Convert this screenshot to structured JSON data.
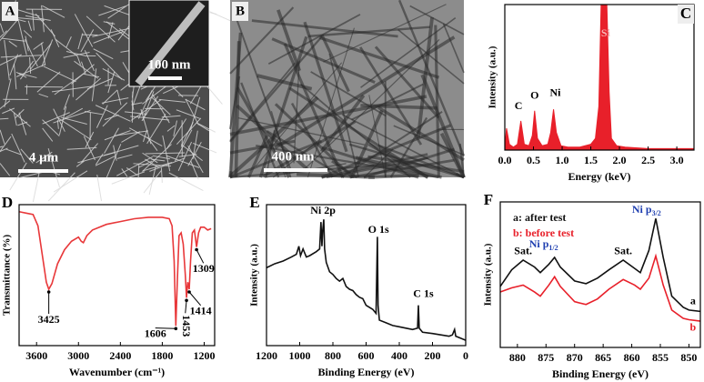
{
  "images": [
    {
      "panel_label": "A",
      "scale_bar": "4 μm",
      "inset_scale_bar": "100 nm"
    },
    {
      "panel_label": "B",
      "scale_bar": "400 nm"
    }
  ],
  "chart_data": [
    {
      "type": "area",
      "panel_label": "C",
      "x_label": "Energy (keV)",
      "y_label": "Intensity (a.u.)",
      "xlim": [
        0,
        3.3
      ],
      "ylim": [
        0,
        100
      ],
      "xticks": [
        {
          "value": 0,
          "label": "0.0"
        },
        0.5,
        {
          "value": 1,
          "label": "1.0"
        },
        1.5,
        {
          "value": 2,
          "label": "2.0"
        },
        2.5,
        {
          "value": 3,
          "label": "3.0"
        }
      ],
      "x": [
        0,
        0.03,
        0.08,
        0.15,
        0.22,
        0.28,
        0.34,
        0.42,
        0.48,
        0.52,
        0.57,
        0.65,
        0.75,
        0.8,
        0.85,
        0.9,
        0.98,
        1.1,
        1.3,
        1.5,
        1.58,
        1.64,
        1.68,
        1.72,
        1.78,
        1.82,
        1.86,
        1.95,
        2.1,
        2.5,
        3.0,
        3.3
      ],
      "series": [
        {
          "color": "#e8202a",
          "values": [
            2,
            15,
            4,
            2,
            4,
            20,
            4,
            3,
            10,
            27,
            8,
            3,
            4,
            12,
            28,
            12,
            3,
            2,
            2,
            4,
            8,
            30,
            100,
            100,
            100,
            40,
            8,
            3,
            2,
            1,
            1,
            1
          ]
        }
      ],
      "annotations": [
        {
          "text": "C",
          "x": 0.24,
          "y": 30
        },
        {
          "text": "O",
          "x": 0.52,
          "y": 37
        },
        {
          "text": "Ni",
          "x": 0.88,
          "y": 39
        },
        {
          "text": "Si",
          "x": 1.76,
          "y": 80,
          "color": "#f7b4b4"
        }
      ]
    },
    {
      "type": "line",
      "panel_label": "D",
      "x_label": "Wavenumber (cm⁻¹)",
      "y_label": "Transmittance (%)",
      "xlim": [
        3850,
        1050
      ],
      "ylim": [
        0,
        100
      ],
      "xticks": [
        3600,
        3000,
        2400,
        1800,
        1200
      ],
      "x": [
        3850,
        3750,
        3650,
        3580,
        3520,
        3460,
        3425,
        3380,
        3300,
        3200,
        3100,
        3000,
        2960,
        2930,
        2880,
        2800,
        2600,
        2400,
        2200,
        2000,
        1800,
        1700,
        1660,
        1630,
        1606,
        1585,
        1560,
        1530,
        1500,
        1470,
        1453,
        1435,
        1414,
        1395,
        1370,
        1340,
        1309,
        1280,
        1250,
        1200,
        1150,
        1100
      ],
      "series": [
        {
          "color": "#e8383a",
          "values": [
            95,
            94,
            93,
            85,
            65,
            45,
            40,
            44,
            58,
            68,
            74,
            77,
            74,
            73,
            78,
            82,
            86,
            88,
            90,
            91,
            91,
            90,
            85,
            60,
            14,
            45,
            78,
            80,
            72,
            50,
            34,
            45,
            40,
            60,
            80,
            82,
            70,
            80,
            84,
            84,
            82,
            83
          ]
        }
      ],
      "annotations": [
        {
          "text": "3425",
          "x": 3425,
          "y": 18,
          "target": 3425
        },
        {
          "text": "1606",
          "x": 1900,
          "y": 8,
          "target": 1606
        },
        {
          "text": "1453",
          "x": 1470,
          "y": 14,
          "target": 1453,
          "vertical": true
        },
        {
          "text": "1414",
          "x": 1250,
          "y": 24,
          "target": 1414
        },
        {
          "text": "1309",
          "x": 1210,
          "y": 54,
          "target": 1309
        }
      ]
    },
    {
      "type": "line",
      "panel_label": "E",
      "x_label": "Binding Energy (eV)",
      "y_label": "Intensity (a.u.)",
      "xlim": [
        1200,
        0
      ],
      "ylim": [
        0,
        105
      ],
      "xticks": [
        1200,
        1000,
        800,
        600,
        400,
        200,
        0
      ],
      "x": [
        1200,
        1150,
        1100,
        1050,
        1020,
        1005,
        995,
        980,
        960,
        940,
        900,
        880,
        872,
        866,
        862,
        855,
        850,
        840,
        820,
        800,
        780,
        760,
        740,
        720,
        700,
        680,
        660,
        640,
        620,
        600,
        560,
        540,
        532,
        528,
        520,
        480,
        440,
        400,
        360,
        320,
        290,
        285,
        280,
        260,
        200,
        150,
        100,
        80,
        67,
        60,
        40,
        20,
        0
      ],
      "series": [
        {
          "color": "#111111",
          "values": [
            58,
            61,
            63,
            66,
            68,
            74,
            67,
            72,
            66,
            67,
            70,
            72,
            92,
            74,
            85,
            94,
            72,
            62,
            55,
            53,
            50,
            48,
            50,
            44,
            42,
            41,
            38,
            36,
            35,
            30,
            27,
            24,
            81,
            30,
            19,
            17,
            15,
            14,
            13,
            12,
            13,
            30,
            13,
            10,
            9,
            8,
            7,
            8,
            12,
            7,
            6,
            5,
            4
          ]
        }
      ],
      "annotations": [
        {
          "text": "Ni 2p",
          "x": 860,
          "y": 100
        },
        {
          "text": "O 1s",
          "x": 525,
          "y": 86
        },
        {
          "text": "C 1s",
          "x": 255,
          "y": 38
        }
      ]
    },
    {
      "type": "line",
      "panel_label": "F",
      "x_label": "Binding Energy (eV)",
      "y_label": "Intensity (a.u.)",
      "xlim": [
        883,
        848
      ],
      "ylim": [
        0,
        105
      ],
      "legend": "upper left",
      "xticks": [
        880,
        875,
        870,
        865,
        860,
        855,
        850
      ],
      "x": [
        883,
        881,
        879,
        877,
        876,
        874.5,
        873.5,
        872.5,
        870,
        868,
        866,
        864,
        861.5,
        859.5,
        858.5,
        857,
        855.8,
        854.5,
        853,
        851,
        850,
        848
      ],
      "series": [
        {
          "name": "a: after test",
          "color": "#111111",
          "values": [
            44,
            56,
            63,
            58,
            54,
            60,
            65,
            58,
            48,
            46,
            50,
            56,
            63,
            57,
            54,
            70,
            93,
            65,
            37,
            29,
            27,
            26
          ]
        },
        {
          "name": "b: before test",
          "color": "#e8202a",
          "values": [
            40,
            43,
            45,
            40,
            37,
            45,
            51,
            44,
            33,
            31,
            35,
            42,
            49,
            45,
            42,
            50,
            66,
            45,
            27,
            21,
            20,
            19
          ]
        }
      ],
      "annotations": [
        {
          "text": "Sat.",
          "x": 879,
          "y": 69
        },
        {
          "text": "Ni p",
          "sub": "1/2",
          "x": 874.5,
          "y": 74,
          "color": "#1f3fb0"
        },
        {
          "text": "Sat.",
          "x": 861.5,
          "y": 69
        },
        {
          "text": "Ni p",
          "sub": "3/2",
          "x": 856.5,
          "y": 99,
          "color": "#1f3fb0"
        },
        {
          "text": "a",
          "x": 849.3,
          "y": 33
        },
        {
          "text": "b",
          "x": 849.3,
          "y": 14,
          "color": "#e8202a"
        }
      ]
    }
  ]
}
